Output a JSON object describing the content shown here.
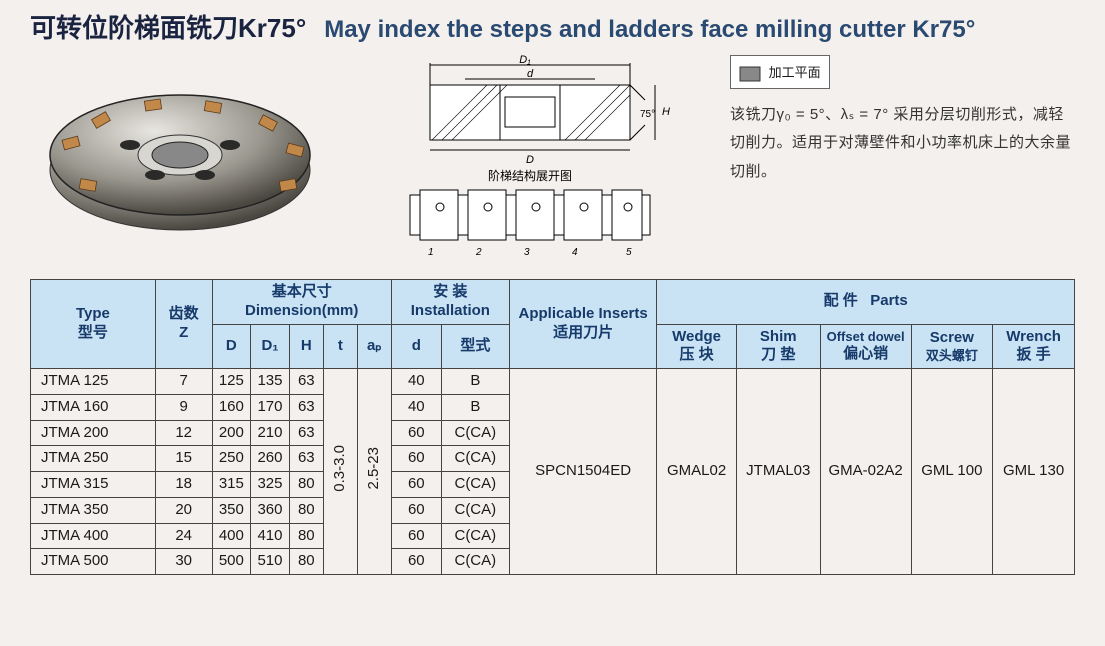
{
  "title": {
    "cn": "可转位阶梯面铣刀Kr75°",
    "en": "May index the steps and ladders face milling cutter Kr75°"
  },
  "diagram_labels": {
    "D": "D",
    "D1": "D₁",
    "d": "d",
    "H": "H",
    "angle": "75°",
    "caption": "阶梯结构展开图",
    "nums": [
      "1",
      "2",
      "3",
      "4",
      "5"
    ]
  },
  "icon_label": "加工平面",
  "description": "该铣刀γ₀ = 5°、λₛ = 7° 采用分层切削形式，减轻切削力。适用于对薄壁件和小功率机床上的大余量切削。",
  "headers": {
    "type": {
      "en": "Type",
      "cn": "型号"
    },
    "teeth": {
      "cn_top": "齿数",
      "en": "Z"
    },
    "dimension": {
      "cn": "基本尺寸",
      "en": "Dimension(mm)",
      "cols": [
        "D",
        "D₁",
        "H",
        "t",
        "aₚ"
      ]
    },
    "installation": {
      "cn": "安 装",
      "en": "Installation",
      "cols": [
        "d",
        "型式"
      ]
    },
    "inserts": {
      "en": "Applicable Inserts",
      "cn": "适用刀片"
    },
    "parts": {
      "cn": "配  件",
      "en": "Parts",
      "cols": [
        {
          "en": "Wedge",
          "cn": "压 块"
        },
        {
          "en": "Shim",
          "cn": "刀 垫"
        },
        {
          "en": "Offset dowel",
          "cn": "偏心销"
        },
        {
          "en": "Screw",
          "cn": "双头螺钉"
        },
        {
          "en": "Wrench",
          "cn": "扳 手"
        }
      ]
    }
  },
  "t_value": "0.3-3.0",
  "ap_value": "2.5-23",
  "inserts_value": "SPCN1504ED",
  "parts_values": {
    "wedge": "GMAL02",
    "shim": "JTMAL03",
    "offset_dowel": "GMA-02A2",
    "screw": "GML 100",
    "wrench": "GML 130"
  },
  "rows": [
    {
      "type": "JTMA 125",
      "z": "7",
      "D": "125",
      "D1": "135",
      "H": "63",
      "d": "40",
      "style": "B"
    },
    {
      "type": "JTMA 160",
      "z": "9",
      "D": "160",
      "D1": "170",
      "H": "63",
      "d": "40",
      "style": "B"
    },
    {
      "type": "JTMA 200",
      "z": "12",
      "D": "200",
      "D1": "210",
      "H": "63",
      "d": "60",
      "style": "C(CA)"
    },
    {
      "type": "JTMA 250",
      "z": "15",
      "D": "250",
      "D1": "260",
      "H": "63",
      "d": "60",
      "style": "C(CA)"
    },
    {
      "type": "JTMA 315",
      "z": "18",
      "D": "315",
      "D1": "325",
      "H": "80",
      "d": "60",
      "style": "C(CA)"
    },
    {
      "type": "JTMA 350",
      "z": "20",
      "D": "350",
      "D1": "360",
      "H": "80",
      "d": "60",
      "style": "C(CA)"
    },
    {
      "type": "JTMA 400",
      "z": "24",
      "D": "400",
      "D1": "410",
      "H": "80",
      "d": "60",
      "style": "C(CA)"
    },
    {
      "type": "JTMA 500",
      "z": "30",
      "D": "500",
      "D1": "510",
      "H": "80",
      "d": "60",
      "style": "C(CA)"
    }
  ],
  "colors": {
    "header_bg": "#c9e3f5",
    "header_text": "#173a6a",
    "border": "#444444",
    "page_bg": "#f4f0ed"
  }
}
